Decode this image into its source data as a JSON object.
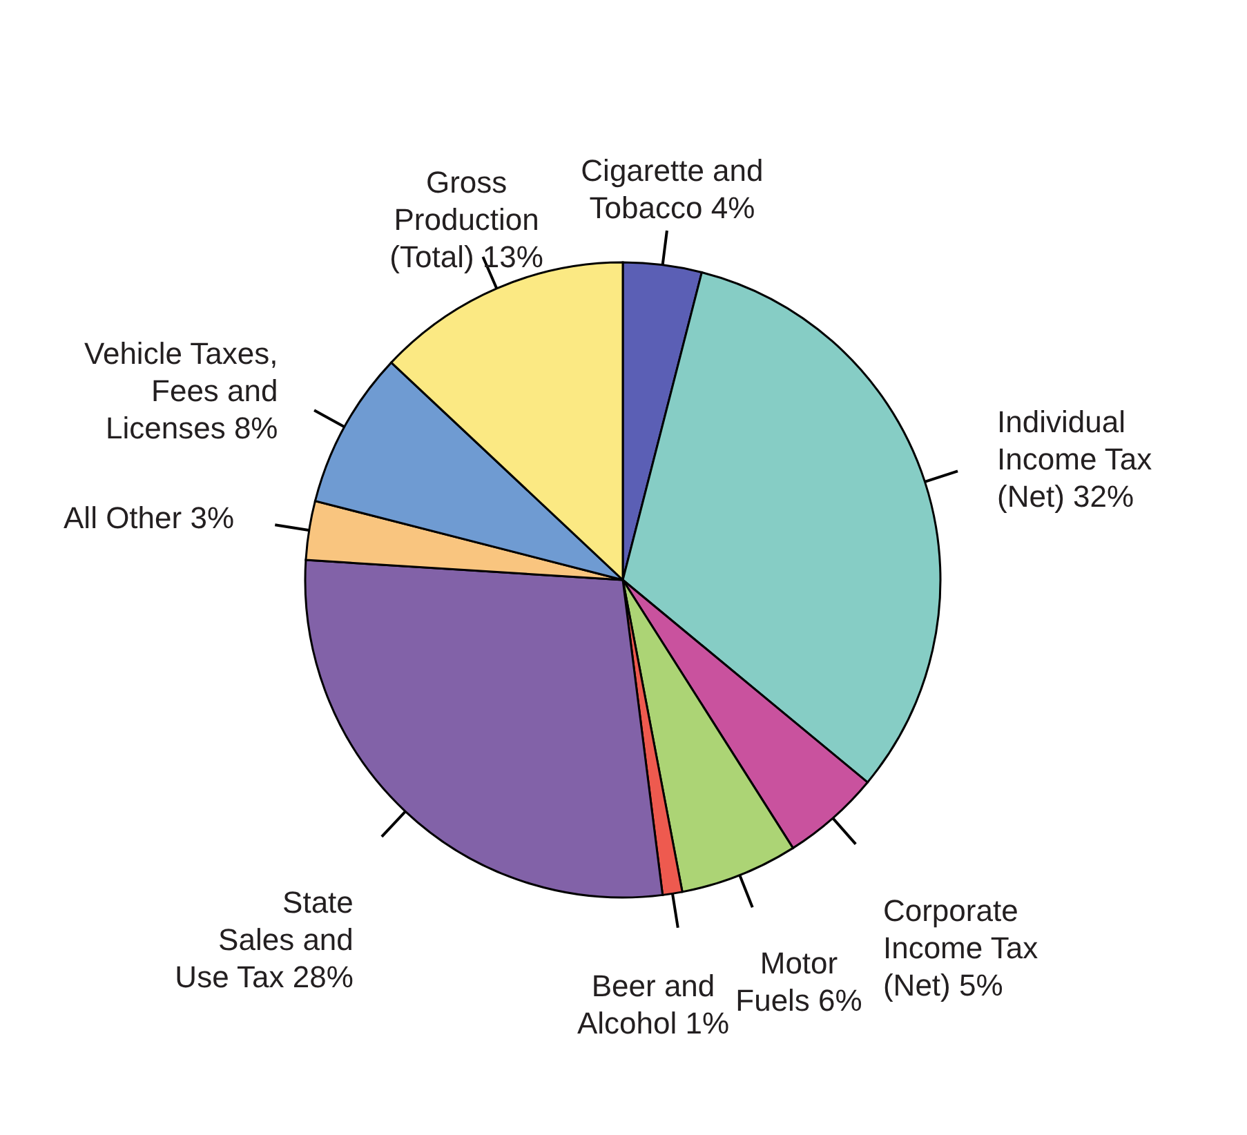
{
  "chart_data": {
    "type": "pie",
    "categories": [
      "Cigarette and Tobacco",
      "Individual Income Tax (Net)",
      "Corporate Income Tax (Net)",
      "Motor Fuels",
      "Beer and Alcohol",
      "State Sales and Use Tax",
      "All Other",
      "Vehicle Taxes, Fees and Licenses",
      "Gross Production (Total)"
    ],
    "values": [
      4,
      32,
      5,
      6,
      1,
      28,
      3,
      8,
      13
    ],
    "value_labels": [
      "4%",
      "32%",
      "5%",
      "6%",
      "1%",
      "28%",
      "3%",
      "8%",
      "13%"
    ],
    "colors": [
      "#5b5fb5",
      "#86cdc5",
      "#c9529e",
      "#acd475",
      "#ee5a4f",
      "#8262a8",
      "#f9c57f",
      "#6f9bd2",
      "#fbe983"
    ]
  }
}
